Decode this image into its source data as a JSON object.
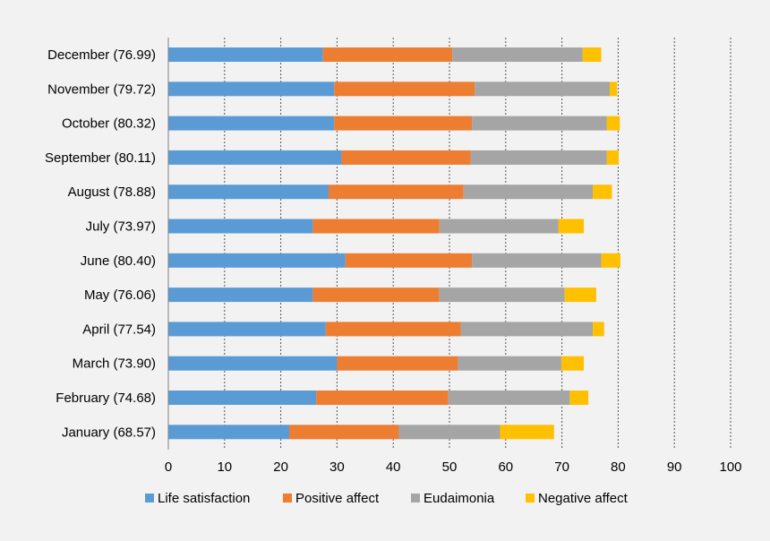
{
  "chart_data": {
    "type": "bar",
    "orientation": "horizontal",
    "stacked": true,
    "categories": [
      "December (76.99)",
      "November (79.72)",
      "October (80.32)",
      "September (80.11)",
      "August (78.88)",
      "July (73.97)",
      "June (80.40)",
      "May (76.06)",
      "April (77.54)",
      "March (73.90)",
      "February (74.68)",
      "January (68.57)"
    ],
    "series": [
      {
        "name": "Life satisfaction",
        "color": "#5b9bd5",
        "values": [
          27.5,
          29.5,
          29.5,
          30.8,
          28.5,
          25.7,
          31.5,
          25.7,
          28.0,
          30.0,
          26.3,
          21.5
        ]
      },
      {
        "name": "Positive affect",
        "color": "#ed7d31",
        "values": [
          23.0,
          25.0,
          24.5,
          23.0,
          24.0,
          22.5,
          22.5,
          22.5,
          24.0,
          21.5,
          23.5,
          19.5
        ]
      },
      {
        "name": "Eudaimonia",
        "color": "#a5a5a5",
        "values": [
          23.2,
          24.0,
          24.0,
          24.2,
          23.0,
          21.2,
          23.0,
          22.3,
          23.5,
          18.4,
          21.6,
          18.0
        ]
      },
      {
        "name": "Negative affect",
        "color": "#ffc000",
        "values": [
          3.3,
          1.3,
          2.3,
          2.1,
          3.4,
          4.5,
          3.4,
          5.6,
          2.0,
          4.0,
          3.3,
          9.6
        ]
      }
    ],
    "xlim": [
      0,
      100
    ],
    "xticks": [
      0,
      10,
      20,
      30,
      40,
      50,
      60,
      70,
      80,
      90,
      100
    ],
    "xtick_labels": [
      "0",
      "10",
      "20",
      "30",
      "40",
      "50",
      "60",
      "70",
      "80",
      "90",
      "100"
    ],
    "grid": "vertical dashed",
    "legend_position": "bottom",
    "title": "",
    "xlabel": "",
    "ylabel": ""
  }
}
